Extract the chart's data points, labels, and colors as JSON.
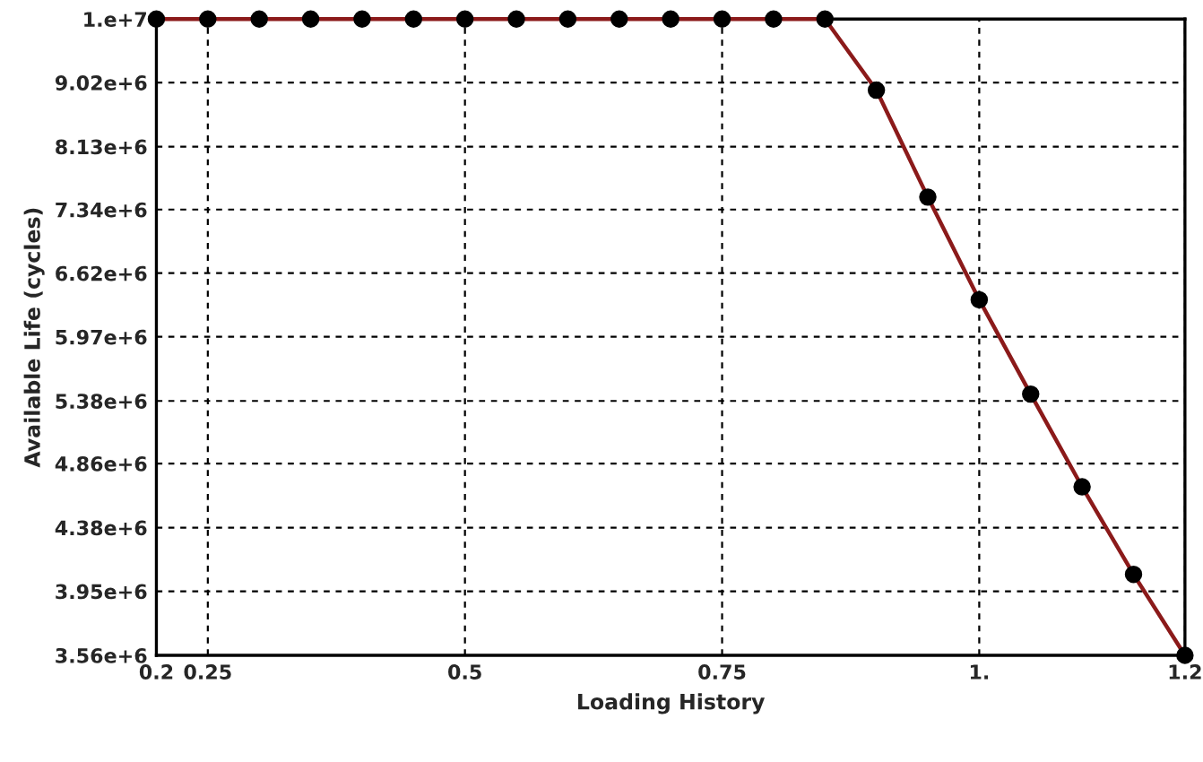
{
  "chart_data": {
    "type": "line",
    "xlabel": "Loading History",
    "ylabel": "Available Life (cycles)",
    "x": [
      0.2,
      0.25,
      0.3,
      0.35,
      0.4,
      0.45,
      0.5,
      0.55,
      0.6,
      0.65,
      0.7,
      0.75,
      0.8,
      0.85,
      0.9,
      0.95,
      1.0,
      1.05,
      1.1,
      1.15,
      1.2
    ],
    "series": [
      {
        "color": "#8b1a1a",
        "values": [
          10000000,
          10000000,
          10000000,
          10000000,
          10000000,
          10000000,
          10000000,
          10000000,
          10000000,
          10000000,
          10000000,
          10000000,
          10000000,
          10000000,
          8910000,
          7490000,
          6340000,
          5440000,
          4680000,
          4060000,
          3560000
        ]
      }
    ],
    "log": "y",
    "xlim": [
      0.2,
      1.2
    ],
    "ylim": [
      3560000,
      10000000
    ],
    "xticks": [
      0.2,
      0.25,
      0.5,
      0.75,
      {
        "value": 1.0,
        "label": "1."
      },
      1.2
    ],
    "yticks": [
      {
        "value": 3560000,
        "label": "3.56e+6"
      },
      {
        "value": 3950000,
        "label": "3.95e+6"
      },
      {
        "value": 4380000,
        "label": "4.38e+6"
      },
      {
        "value": 4860000,
        "label": "4.86e+6"
      },
      {
        "value": 5380000,
        "label": "5.38e+6"
      },
      {
        "value": 5970000,
        "label": "5.97e+6"
      },
      {
        "value": 6620000,
        "label": "6.62e+6"
      },
      {
        "value": 7340000,
        "label": "7.34e+6"
      },
      {
        "value": 8130000,
        "label": "8.13e+6"
      },
      {
        "value": 9020000,
        "label": "9.02e+6"
      },
      {
        "value": 10000000,
        "label": "1.e+7"
      }
    ],
    "grid": true,
    "marker": "circle",
    "line_style": "solid",
    "legend": false
  }
}
